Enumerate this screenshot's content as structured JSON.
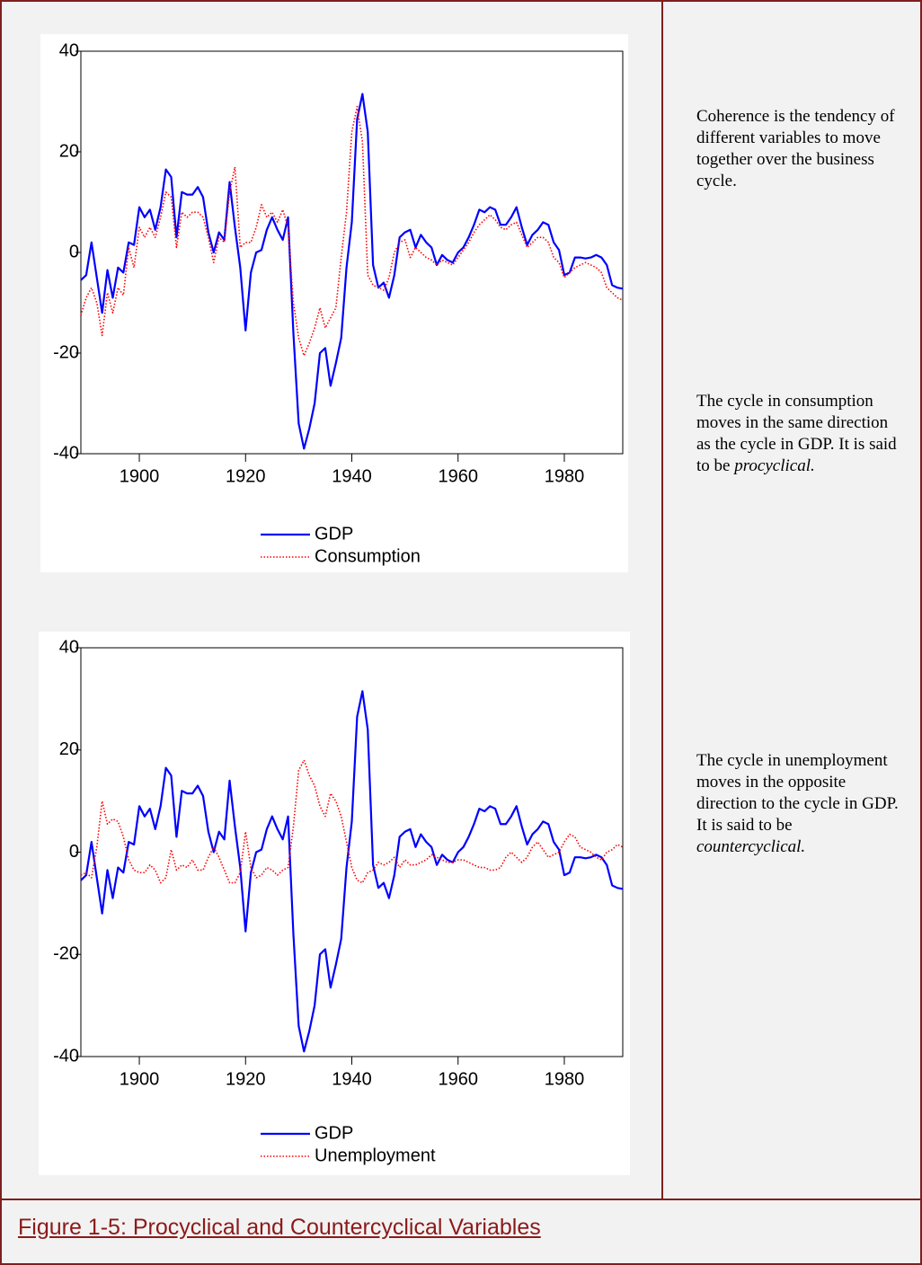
{
  "chart_data": [
    {
      "type": "line",
      "x": [
        1889,
        1890,
        1891,
        1892,
        1893,
        1894,
        1895,
        1896,
        1897,
        1898,
        1899,
        1900,
        1901,
        1902,
        1903,
        1904,
        1905,
        1906,
        1907,
        1908,
        1909,
        1910,
        1911,
        1912,
        1913,
        1914,
        1915,
        1916,
        1917,
        1918,
        1919,
        1920,
        1921,
        1922,
        1923,
        1924,
        1925,
        1926,
        1927,
        1928,
        1929,
        1930,
        1931,
        1932,
        1933,
        1934,
        1935,
        1936,
        1937,
        1938,
        1939,
        1940,
        1941,
        1942,
        1943,
        1944,
        1945,
        1946,
        1947,
        1948,
        1949,
        1950,
        1951,
        1952,
        1953,
        1954,
        1955,
        1956,
        1957,
        1958,
        1959,
        1960,
        1961,
        1962,
        1963,
        1964,
        1965,
        1966,
        1967,
        1968,
        1969,
        1970,
        1971,
        1972,
        1973,
        1974,
        1975,
        1976,
        1977,
        1978,
        1979,
        1980,
        1981,
        1982,
        1983,
        1984,
        1985,
        1986,
        1987,
        1988,
        1989,
        1990,
        1991
      ],
      "series": [
        {
          "name": "GDP",
          "color": "#0000ff",
          "style": "solid",
          "values": [
            -5.5,
            -4.5,
            2,
            -5,
            -12,
            -3.5,
            -9,
            -3,
            -4,
            2,
            1.5,
            9,
            7,
            8.5,
            4.5,
            9,
            16.5,
            15,
            3,
            12,
            11.5,
            11.5,
            13,
            11,
            4,
            0,
            4,
            2.5,
            14,
            5,
            -3,
            -15.5,
            -4,
            0,
            0.5,
            4.5,
            7,
            4.5,
            2.5,
            7,
            -16,
            -34,
            -39,
            -35,
            -30,
            -20,
            -19,
            -26.5,
            -22,
            -17,
            -3,
            6,
            26.5,
            31.5,
            24,
            -2.5,
            -7,
            -6,
            -9,
            -4.5,
            3,
            4,
            4.5,
            1,
            3.5,
            2,
            1,
            -2.5,
            -0.5,
            -1.5,
            -2,
            0,
            1,
            3,
            5.5,
            8.5,
            8,
            9,
            8.5,
            5.5,
            5.5,
            7,
            9,
            5,
            1.5,
            3.5,
            4.5,
            6,
            5.5,
            2,
            0.5,
            -4.5,
            -4,
            -1,
            -1,
            -1.2,
            -1,
            -0.5,
            -1,
            -2.5,
            -6.5,
            -7,
            -7.2
          ]
        },
        {
          "name": "Consumption",
          "color": "#ff0000",
          "style": "dotted",
          "values": [
            -12.5,
            -9,
            -7,
            -10,
            -16.5,
            -8,
            -12,
            -7,
            -8.5,
            1,
            -3,
            5,
            3,
            5,
            3,
            7,
            12,
            11,
            1,
            8,
            7,
            8,
            8,
            7,
            3,
            -2,
            3,
            2,
            12,
            17,
            1,
            2,
            2,
            5,
            9.5,
            7,
            8,
            6,
            8.5,
            5,
            -10,
            -17,
            -20.5,
            -18,
            -15,
            -11,
            -15,
            -13,
            -11,
            -1,
            8,
            24,
            29,
            22,
            -4.5,
            -6.5,
            -7,
            -7.5,
            -5,
            0,
            2,
            2.5,
            -1,
            1,
            0,
            -1,
            -1.5,
            -2.5,
            -1.5,
            -2,
            -2.5,
            -1,
            0.5,
            2,
            4,
            5.5,
            6.5,
            7.5,
            6.5,
            5,
            4.5,
            5.5,
            6,
            3.5,
            1,
            2,
            3,
            3,
            2,
            -1,
            -2,
            -5,
            -4,
            -3,
            -2.5,
            -2,
            -2.5,
            -3,
            -4,
            -7,
            -8,
            -9,
            -9.5
          ]
        }
      ],
      "xlim": [
        1889,
        1991
      ],
      "xticks": [
        1900,
        1920,
        1940,
        1960,
        1980
      ],
      "ylim": [
        -40,
        40
      ],
      "yticks": [
        -40,
        -20,
        0,
        20,
        40
      ]
    },
    {
      "type": "line",
      "x": [
        1889,
        1890,
        1891,
        1892,
        1893,
        1894,
        1895,
        1896,
        1897,
        1898,
        1899,
        1900,
        1901,
        1902,
        1903,
        1904,
        1905,
        1906,
        1907,
        1908,
        1909,
        1910,
        1911,
        1912,
        1913,
        1914,
        1915,
        1916,
        1917,
        1918,
        1919,
        1920,
        1921,
        1922,
        1923,
        1924,
        1925,
        1926,
        1927,
        1928,
        1929,
        1930,
        1931,
        1932,
        1933,
        1934,
        1935,
        1936,
        1937,
        1938,
        1939,
        1940,
        1941,
        1942,
        1943,
        1944,
        1945,
        1946,
        1947,
        1948,
        1949,
        1950,
        1951,
        1952,
        1953,
        1954,
        1955,
        1956,
        1957,
        1958,
        1959,
        1960,
        1961,
        1962,
        1963,
        1964,
        1965,
        1966,
        1967,
        1968,
        1969,
        1970,
        1971,
        1972,
        1973,
        1974,
        1975,
        1976,
        1977,
        1978,
        1979,
        1980,
        1981,
        1982,
        1983,
        1984,
        1985,
        1986,
        1987,
        1988,
        1989,
        1990,
        1991
      ],
      "series": [
        {
          "name": "GDP",
          "color": "#0000ff",
          "style": "solid",
          "values": [
            -5.5,
            -4.5,
            2,
            -5,
            -12,
            -3.5,
            -9,
            -3,
            -4,
            2,
            1.5,
            9,
            7,
            8.5,
            4.5,
            9,
            16.5,
            15,
            3,
            12,
            11.5,
            11.5,
            13,
            11,
            4,
            0,
            4,
            2.5,
            14,
            5,
            -3,
            -15.5,
            -4,
            0,
            0.5,
            4.5,
            7,
            4.5,
            2.5,
            7,
            -16,
            -34,
            -39,
            -35,
            -30,
            -20,
            -19,
            -26.5,
            -22,
            -17,
            -3,
            6,
            26.5,
            31.5,
            24,
            -2.5,
            -7,
            -6,
            -9,
            -4.5,
            3,
            4,
            4.5,
            1,
            3.5,
            2,
            1,
            -2.5,
            -0.5,
            -1.5,
            -2,
            0,
            1,
            3,
            5.5,
            8.5,
            8,
            9,
            8.5,
            5.5,
            5.5,
            7,
            9,
            5,
            1.5,
            3.5,
            4.5,
            6,
            5.5,
            2,
            0.5,
            -4.5,
            -4,
            -1,
            -1,
            -1.2,
            -1,
            -0.5,
            -1,
            -2.5,
            -6.5,
            -7,
            -7.2
          ]
        },
        {
          "name": "Unemployment",
          "color": "#ff0000",
          "style": "dotted",
          "values": [
            -4.5,
            -4,
            -5,
            1,
            10,
            5.5,
            6.5,
            6,
            3,
            -1.5,
            -3.5,
            -4,
            -4,
            -2.5,
            -3.5,
            -6,
            -5,
            0.5,
            -3.5,
            -2.5,
            -3,
            -1.5,
            -3.5,
            -3.5,
            -1,
            1,
            -1,
            -3.5,
            -6,
            -6,
            -4,
            4,
            -3,
            -5,
            -4.5,
            -3,
            -3.5,
            -4.5,
            -3.5,
            -3,
            5,
            16,
            18,
            15,
            13,
            9,
            7,
            11.5,
            10,
            7,
            2,
            -3,
            -5.5,
            -6,
            -4,
            -3.5,
            -2,
            -2.5,
            -2,
            -1,
            -3,
            -1.5,
            -2.5,
            -2.5,
            -2,
            -1.5,
            -0.5,
            -1,
            -1.5,
            -2,
            -2,
            -1.5,
            -1.5,
            -2,
            -2.5,
            -3,
            -3,
            -3.5,
            -3.5,
            -3,
            -1,
            0,
            -1,
            -2,
            -1,
            1,
            2,
            0.5,
            -1,
            -0.5,
            0,
            2,
            3.5,
            3,
            1,
            0.5,
            0,
            -1,
            -1.5,
            0,
            0.5,
            1.5,
            1
          ]
        }
      ],
      "xlim": [
        1889,
        1991
      ],
      "xticks": [
        1900,
        1920,
        1940,
        1960,
        1980
      ],
      "ylim": [
        -40,
        40
      ],
      "yticks": [
        -40,
        -20,
        0,
        20,
        40
      ]
    }
  ],
  "notes": [
    {
      "text": "Coherence is the tendency of different variables to move together over the business cycle."
    },
    {
      "text": "The cycle in consumption moves in the same direction as the cycle in GDP.  It is said to be ",
      "italic": "procyclical."
    },
    {
      "text": "The cycle in unemployment moves in the opposite direction to the cycle in GDP.  It is said to be ",
      "italic": "countercyclical."
    }
  ],
  "caption": "Figure 1-5: Procyclical and Countercyclical Variables"
}
